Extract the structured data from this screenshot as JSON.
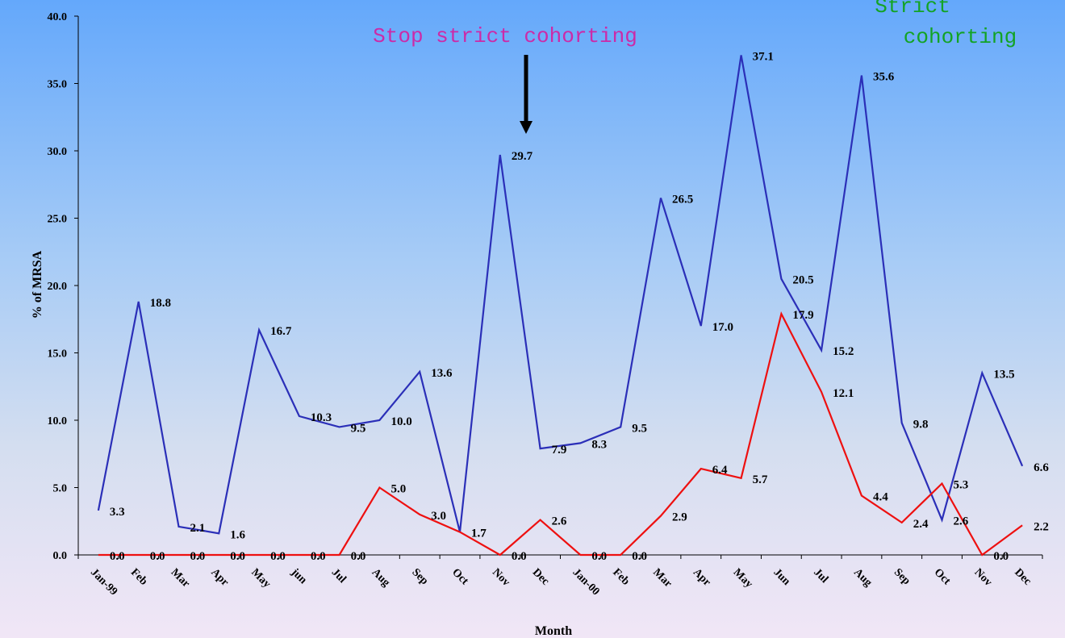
{
  "chart_data": {
    "type": "line",
    "title": "",
    "xlabel": "Month",
    "ylabel": "% of MRSA",
    "ylim": [
      0,
      40
    ],
    "yticks": [
      "0.0",
      "5.0",
      "10.0",
      "15.0",
      "20.0",
      "25.0",
      "30.0",
      "35.0",
      "40.0"
    ],
    "categories": [
      "Jan-99",
      "Feb",
      "Mar",
      "Apr",
      "May",
      "jun",
      "Jul",
      "Aug",
      "Sep",
      "Oct",
      "Nov",
      "Dec",
      "Jan-00",
      "Feb",
      "Mar",
      "Apr",
      "May",
      "Jun",
      "Jul",
      "Aug",
      "Sep",
      "Oct",
      "Nov",
      "Dec"
    ],
    "series": [
      {
        "color": "#2b2fb8",
        "values": [
          3.3,
          18.8,
          2.1,
          1.6,
          16.7,
          10.3,
          9.5,
          10.0,
          13.6,
          1.7,
          29.7,
          7.9,
          8.3,
          9.5,
          26.5,
          17.0,
          37.1,
          20.5,
          15.2,
          35.6,
          9.8,
          2.6,
          13.5,
          6.6
        ],
        "labels": [
          "3.3",
          "18.8",
          "2.1",
          "1.6",
          "16.7",
          "10.3",
          "9.5",
          "10.0",
          "13.6",
          "1.7",
          "29.7",
          "7.9",
          "8.3",
          "9.5",
          "26.5",
          "17.0",
          "37.1",
          "20.5",
          "15.2",
          "35.6",
          "9.8",
          "2.6",
          "13.5",
          "6.6"
        ]
      },
      {
        "color": "#ee1010",
        "values": [
          0.0,
          0.0,
          0.0,
          0.0,
          0.0,
          0.0,
          0.0,
          5.0,
          3.0,
          1.7,
          0.0,
          2.6,
          0.0,
          0.0,
          2.9,
          6.4,
          5.7,
          17.9,
          12.1,
          4.4,
          2.4,
          5.3,
          0.0,
          2.2
        ],
        "labels": [
          "0.0",
          "0.0",
          "0.0",
          "0.0",
          "0.0",
          "0.0",
          "0.0",
          "5.0",
          "3.0",
          "1.7",
          "0.0",
          "2.6",
          "0.0",
          "0.0",
          "2.9",
          "6.4",
          "5.7",
          "17.9",
          "12.1",
          "4.4",
          "2.4",
          "5.3",
          "0.0",
          "2.2"
        ]
      }
    ],
    "annotations": [
      {
        "text": "Stop strict cohorting",
        "color": "#cc2aa8"
      },
      {
        "line1": "Strict",
        "line2": "cohorting",
        "color": "#13a325"
      }
    ],
    "grid": false,
    "legend": "none"
  }
}
